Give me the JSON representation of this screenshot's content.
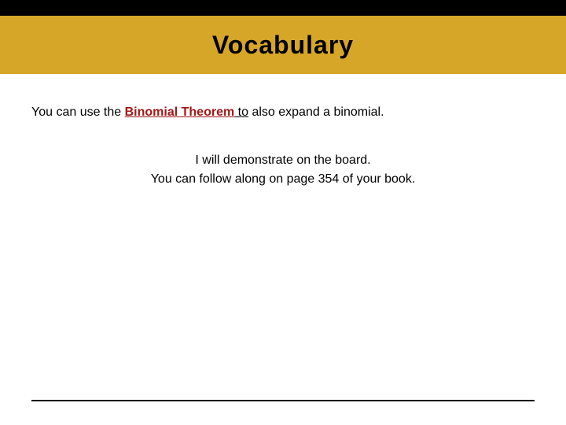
{
  "colors": {
    "header_black": "#000000",
    "header_gold": "#d6a628",
    "background": "#ffffff",
    "title_color": "#000000",
    "body_text": "#000000",
    "term_color": "#a01818",
    "footer_line": "#000000"
  },
  "typography": {
    "title_fontsize": 32,
    "title_weight": "900",
    "body_fontsize": 16
  },
  "header": {
    "title": "Vocabulary"
  },
  "intro": {
    "prefix": "You can use the ",
    "term": "Binomial Theorem",
    "suffix_underlined": " to",
    "suffix_plain": " also expand a binomial."
  },
  "note": {
    "line1": "I will demonstrate on the board.",
    "line2": "You can follow along on page 354 of your book."
  }
}
